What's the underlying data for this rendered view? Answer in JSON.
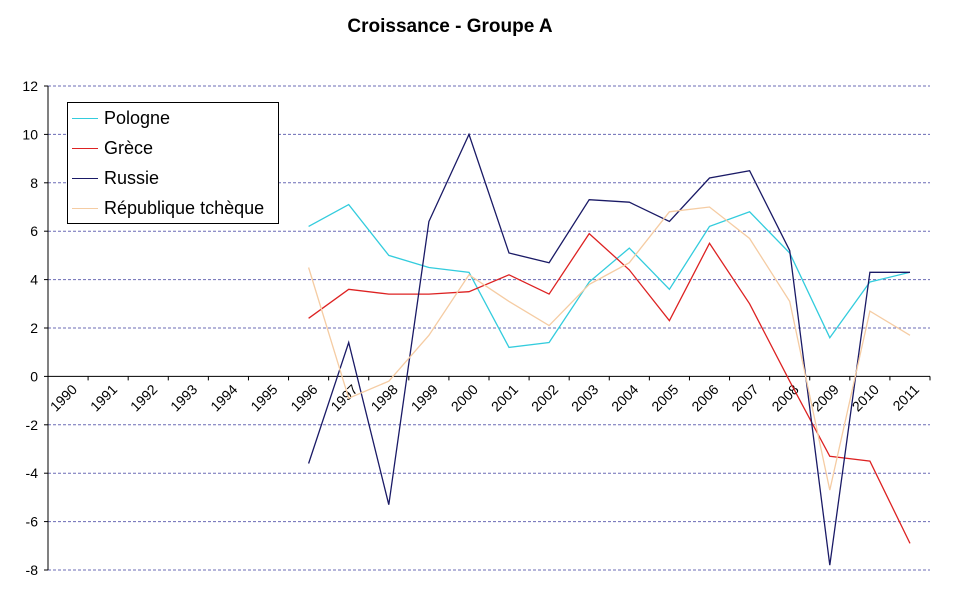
{
  "chart_data": {
    "type": "line",
    "title": "Croissance - Groupe A",
    "xlabel": "",
    "ylabel": "",
    "ylim": [
      -8,
      12
    ],
    "yticks": [
      -8,
      -6,
      -4,
      -2,
      0,
      2,
      4,
      6,
      8,
      10,
      12
    ],
    "categories": [
      "1990",
      "1991",
      "1992",
      "1993",
      "1994",
      "1995",
      "1996",
      "1997",
      "1998",
      "1999",
      "2000",
      "2001",
      "2002",
      "2003",
      "2004",
      "2005",
      "2006",
      "2007",
      "2008",
      "2009",
      "2010",
      "2011"
    ],
    "grid": true,
    "legend_position": "top-left",
    "series": [
      {
        "name": "Pologne",
        "color": "#33ccdd",
        "values": [
          null,
          null,
          null,
          null,
          null,
          null,
          6.2,
          7.1,
          5.0,
          4.5,
          4.3,
          1.2,
          1.4,
          3.9,
          5.3,
          3.6,
          6.2,
          6.8,
          5.1,
          1.6,
          3.9,
          4.3
        ]
      },
      {
        "name": "Grèce",
        "color": "#dd2222",
        "values": [
          null,
          null,
          null,
          null,
          null,
          null,
          2.4,
          3.6,
          3.4,
          3.4,
          3.5,
          4.2,
          3.4,
          5.9,
          4.4,
          2.3,
          5.5,
          3.0,
          -0.2,
          -3.3,
          -3.5,
          -6.9
        ]
      },
      {
        "name": "Russie",
        "color": "#1a1a66",
        "values": [
          null,
          null,
          null,
          null,
          null,
          null,
          -3.6,
          1.4,
          -5.3,
          6.4,
          10.0,
          5.1,
          4.7,
          7.3,
          7.2,
          6.4,
          8.2,
          8.5,
          5.2,
          -7.8,
          4.3,
          4.3
        ]
      },
      {
        "name": "République tchèque",
        "color": "#f5cca3",
        "values": [
          null,
          null,
          null,
          null,
          null,
          null,
          4.5,
          -0.9,
          -0.2,
          1.7,
          4.2,
          3.1,
          2.1,
          3.8,
          4.7,
          6.8,
          7.0,
          5.7,
          3.1,
          -4.7,
          2.7,
          1.7
        ]
      }
    ]
  }
}
